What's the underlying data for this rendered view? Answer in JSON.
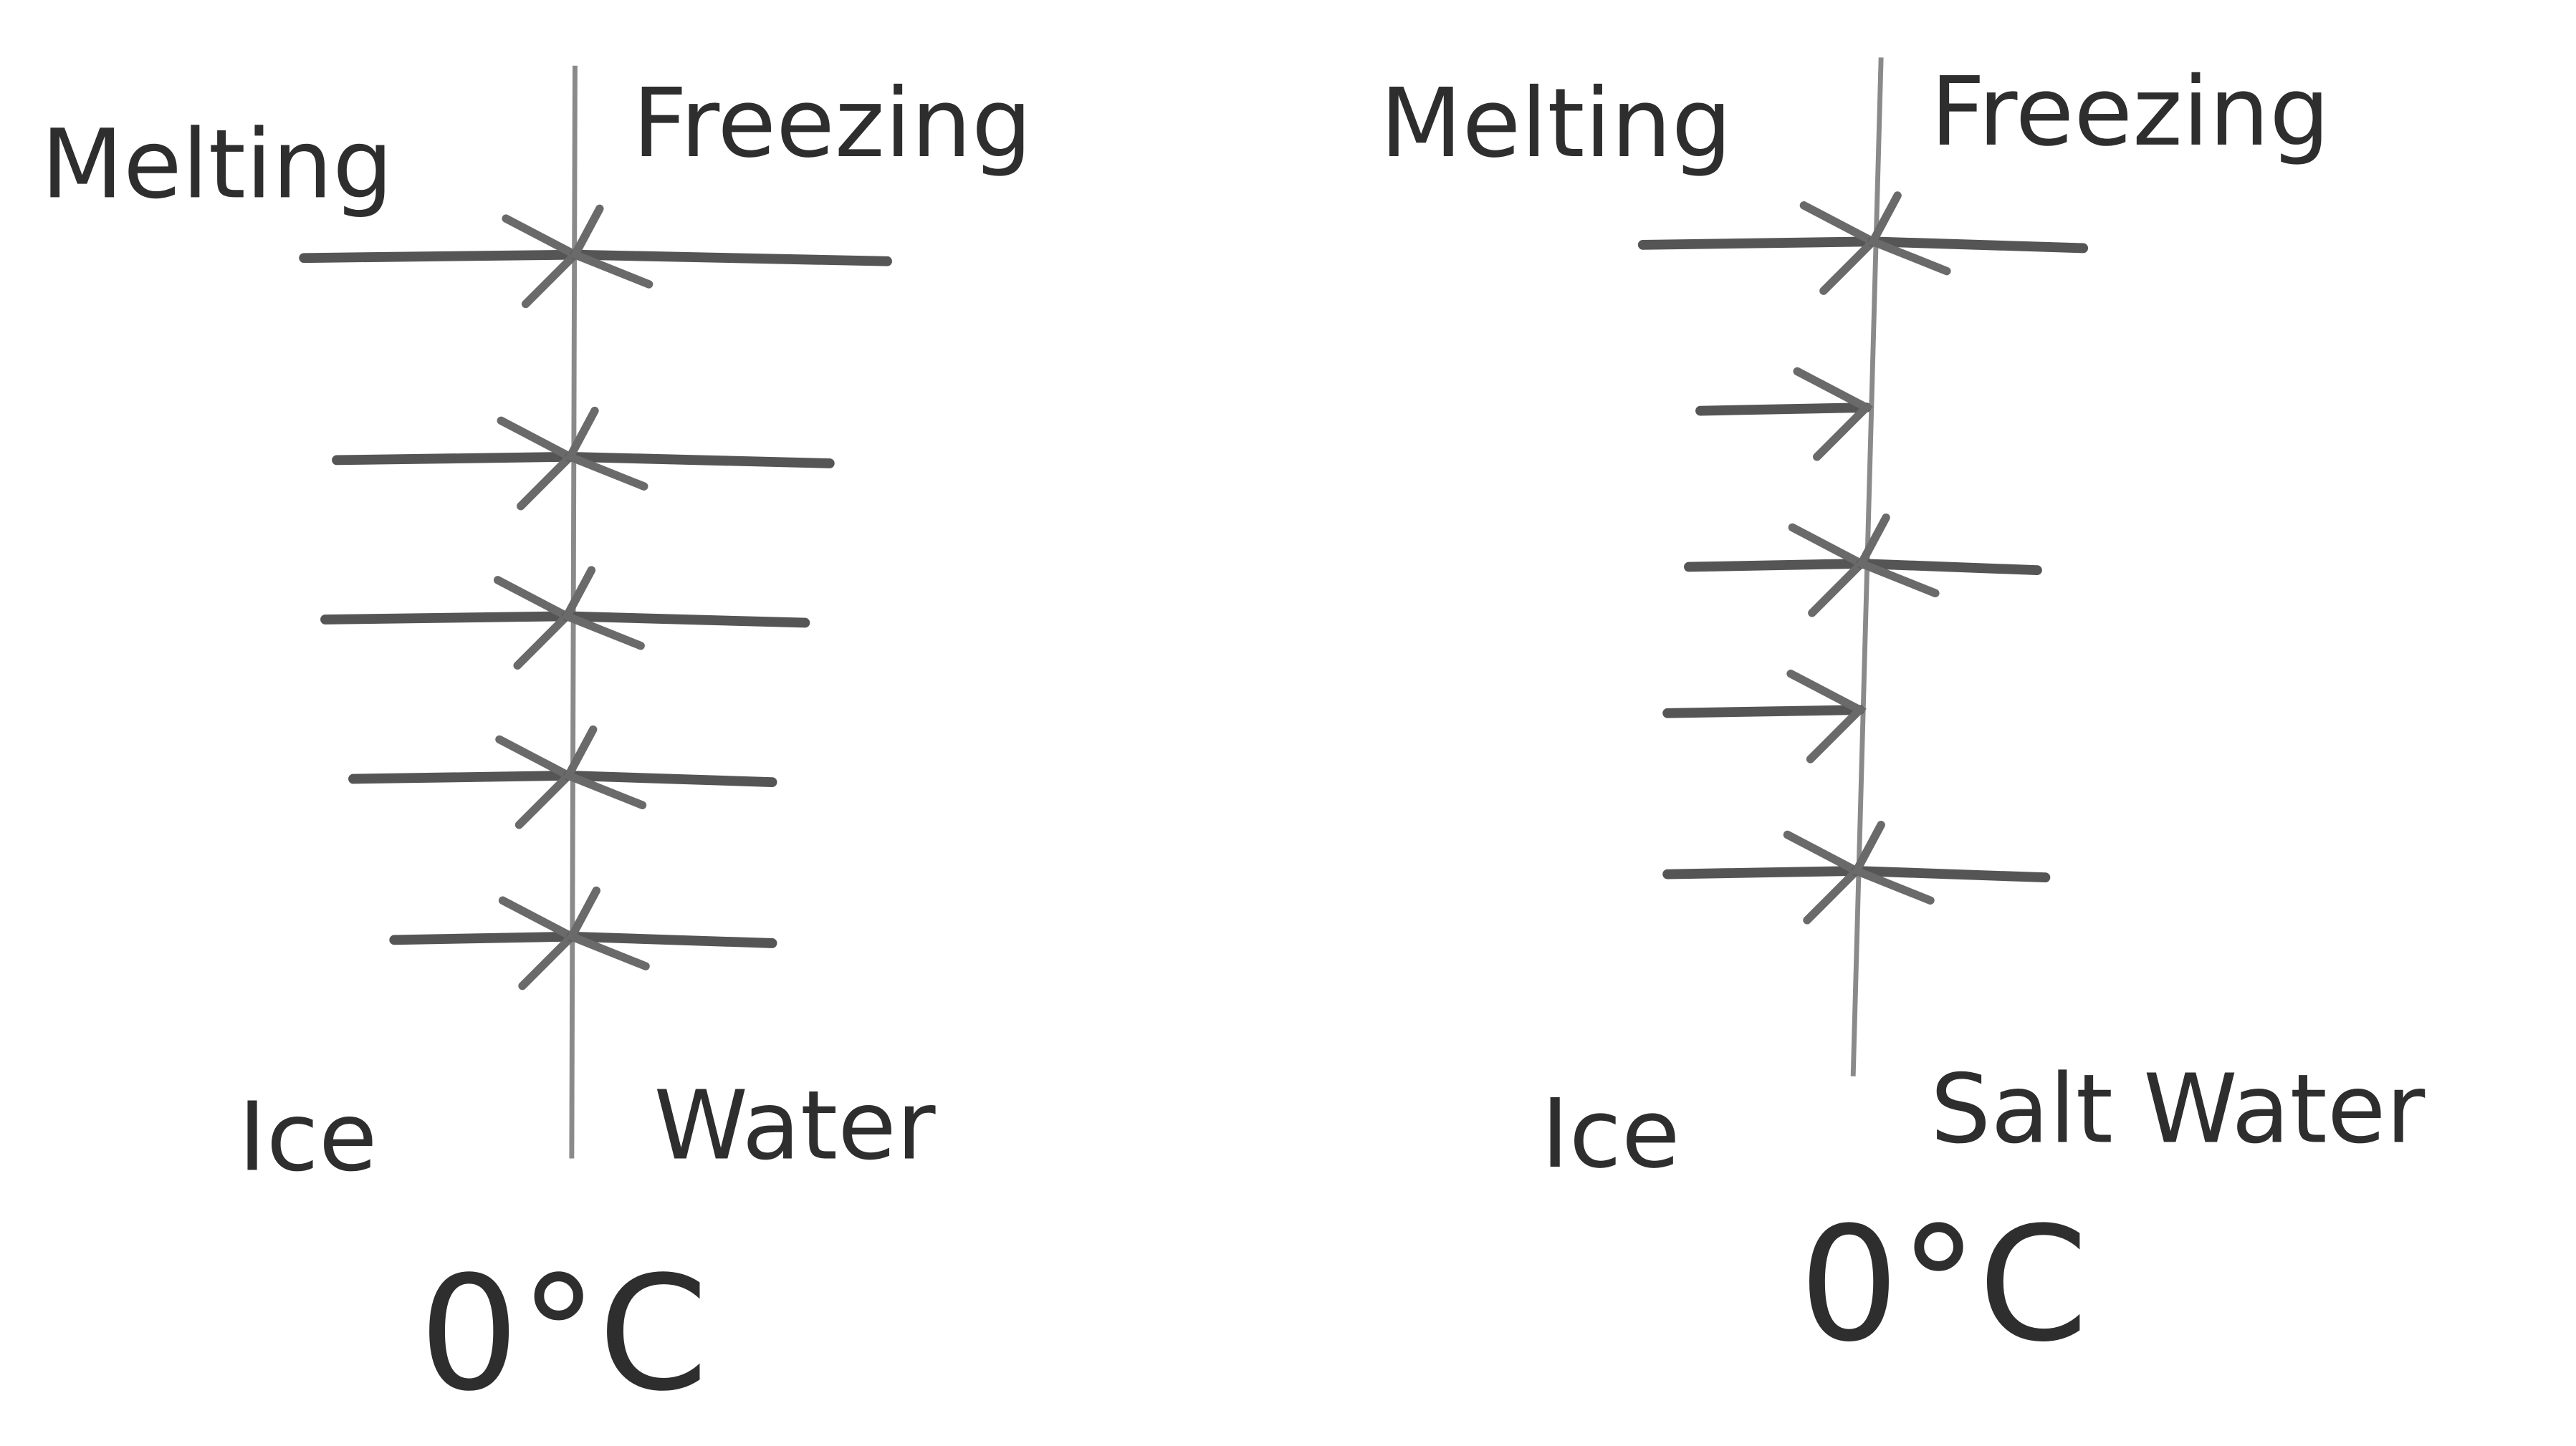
{
  "panels": [
    {
      "melting": "Melting",
      "freezing": "Freezing",
      "solid": "Ice",
      "liquid": "Water",
      "temperature": "0°C"
    },
    {
      "melting": "Melting",
      "freezing": "Freezing",
      "solid": "Ice",
      "liquid": "Salt Water",
      "temperature": "0°C"
    }
  ]
}
